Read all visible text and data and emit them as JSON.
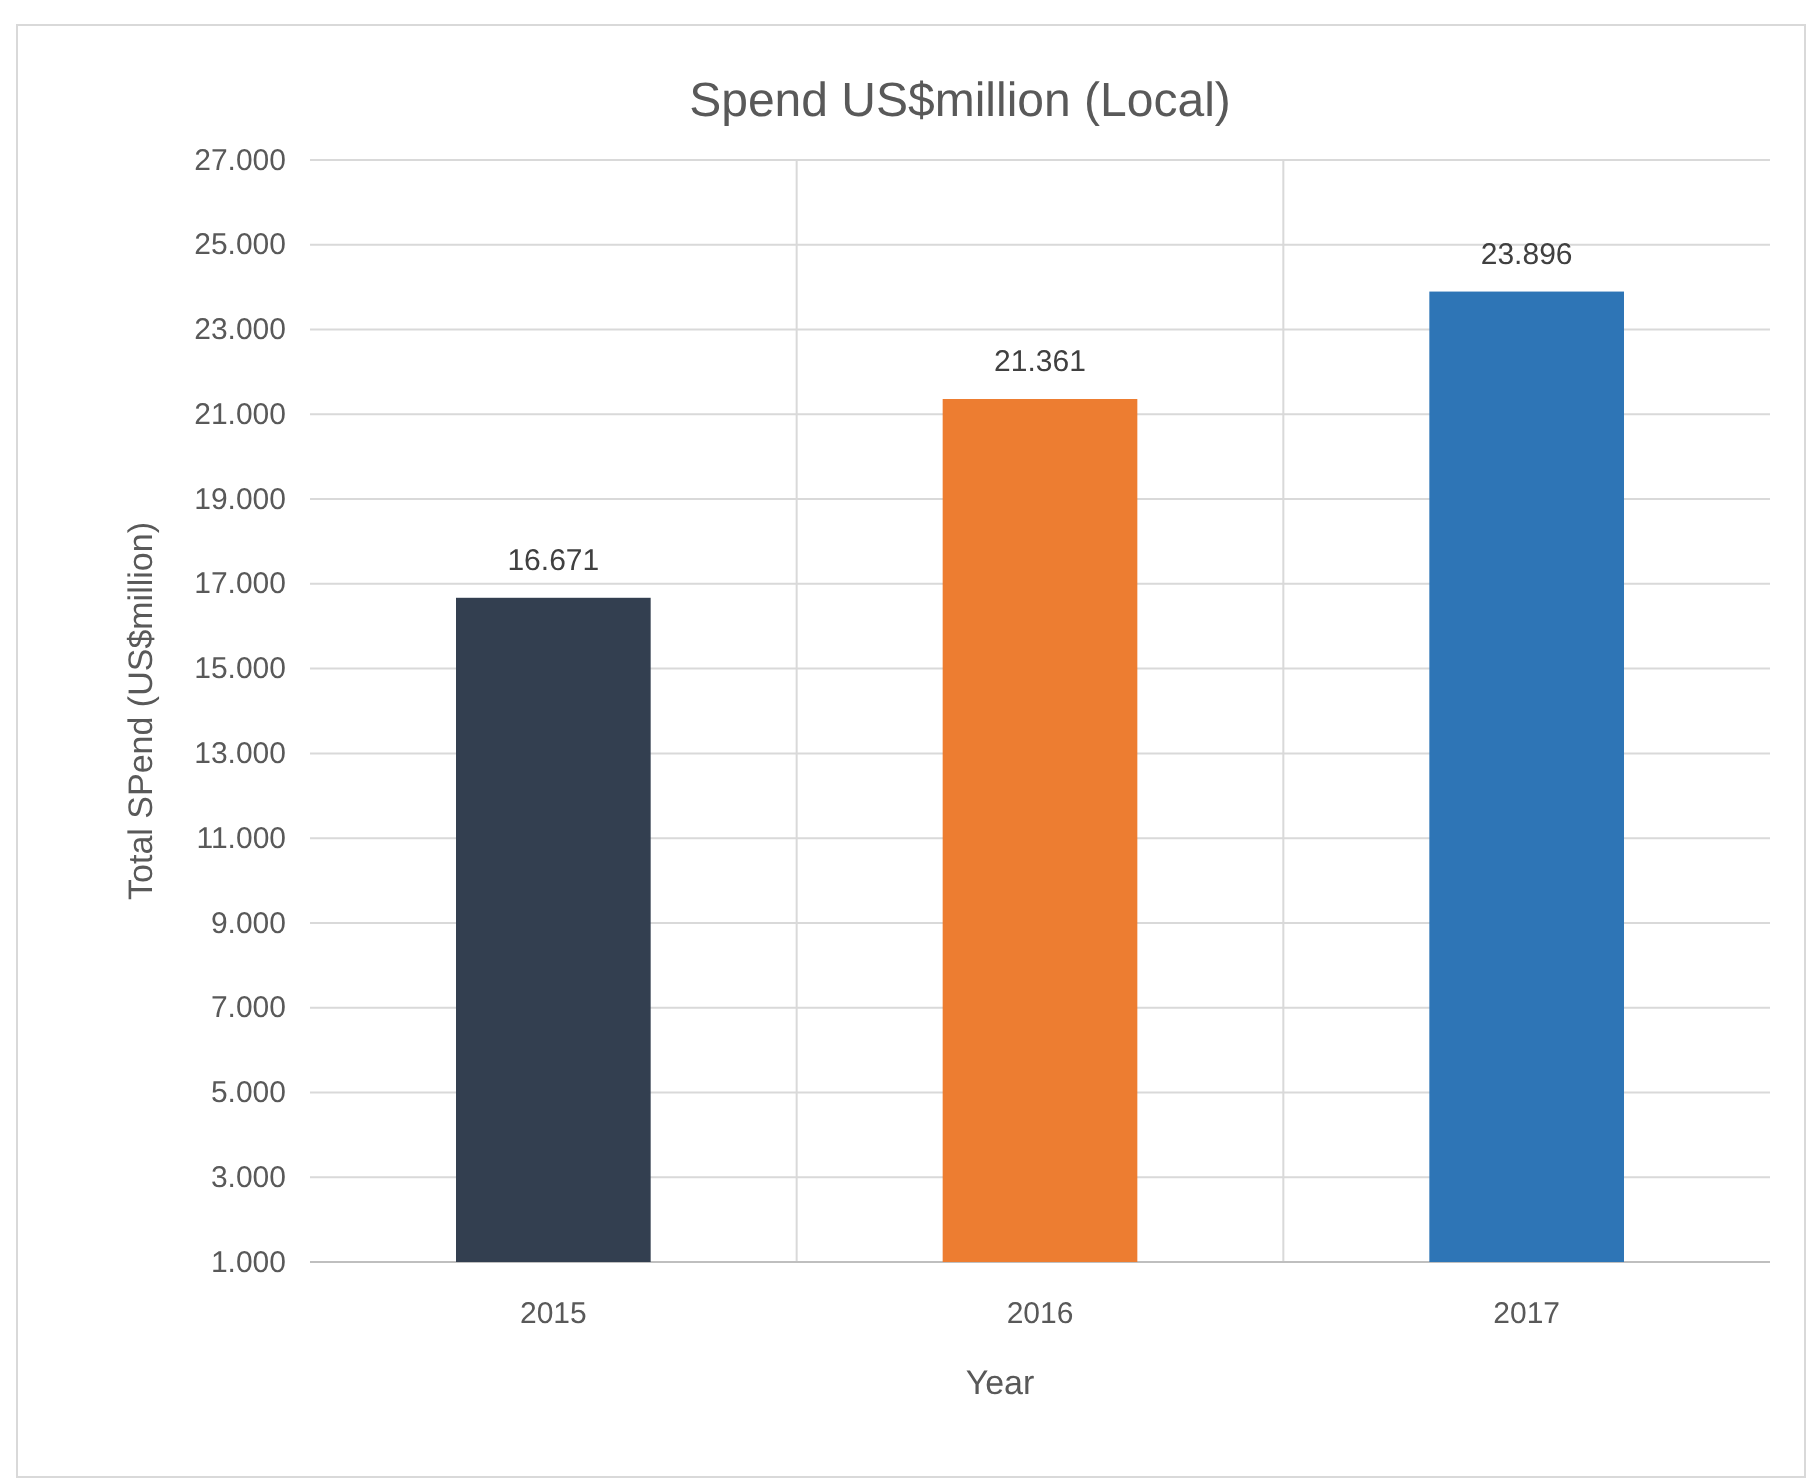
{
  "chart_data": {
    "type": "bar",
    "title": "Spend US$million (Local)",
    "xlabel": "Year",
    "ylabel": "Total SPend (US$million)",
    "categories": [
      "2015",
      "2016",
      "2017"
    ],
    "values": [
      16.671,
      21.361,
      23.896
    ],
    "colors": [
      "#333f50",
      "#ed7d31",
      "#2e75b6"
    ],
    "ylim": [
      1,
      27
    ],
    "yticks": [
      {
        "value": 1,
        "label": "1.000"
      },
      {
        "value": 3,
        "label": "3.000"
      },
      {
        "value": 5,
        "label": "5.000"
      },
      {
        "value": 7,
        "label": "7.000"
      },
      {
        "value": 9,
        "label": "9.000"
      },
      {
        "value": 11,
        "label": "11.000"
      },
      {
        "value": 13,
        "label": "13.000"
      },
      {
        "value": 15,
        "label": "15.000"
      },
      {
        "value": 17,
        "label": "17.000"
      },
      {
        "value": 19,
        "label": "19.000"
      },
      {
        "value": 21,
        "label": "21.000"
      },
      {
        "value": 23,
        "label": "23.000"
      },
      {
        "value": 25,
        "label": "25.000"
      },
      {
        "value": 27,
        "label": "27.000"
      }
    ],
    "grid": true,
    "data_labels": true
  }
}
